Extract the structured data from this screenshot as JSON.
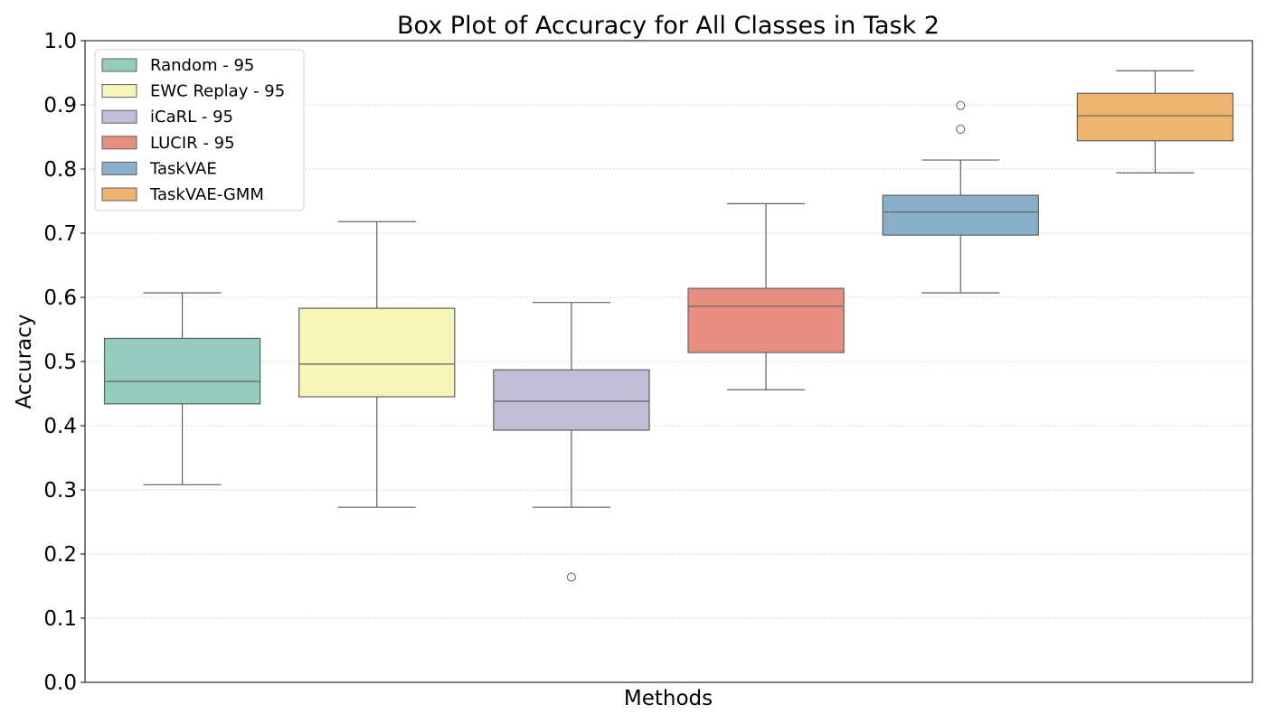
{
  "chart_data": {
    "type": "box",
    "title": "Box Plot of Accuracy for All Classes in Task 2",
    "xlabel": "Methods",
    "ylabel": "Accuracy",
    "ylim": [
      0.0,
      1.0
    ],
    "yticks": [
      "0.0",
      "0.1",
      "0.2",
      "0.3",
      "0.4",
      "0.5",
      "0.6",
      "0.7",
      "0.8",
      "0.9",
      "1.0"
    ],
    "grid": "horizontal dotted",
    "legend_position": "top-left",
    "series": [
      {
        "name": "Random - 95",
        "color": "#96cbc0",
        "whisker_low": 0.308,
        "q1": 0.434,
        "median": 0.469,
        "q3": 0.536,
        "whisker_high": 0.607,
        "outliers": []
      },
      {
        "name": "EWC Replay - 95",
        "color": "#f6f5b8",
        "whisker_low": 0.273,
        "q1": 0.445,
        "median": 0.496,
        "q3": 0.583,
        "whisker_high": 0.718,
        "outliers": []
      },
      {
        "name": "iCaRL - 95",
        "color": "#c1bdd6",
        "whisker_low": 0.273,
        "q1": 0.393,
        "median": 0.438,
        "q3": 0.487,
        "whisker_high": 0.592,
        "outliers": [
          0.164
        ]
      },
      {
        "name": "LUCIR - 95",
        "color": "#e98f82",
        "whisker_low": 0.456,
        "q1": 0.514,
        "median": 0.586,
        "q3": 0.614,
        "whisker_high": 0.746,
        "outliers": []
      },
      {
        "name": "TaskVAE",
        "color": "#8aafca",
        "whisker_low": 0.607,
        "q1": 0.697,
        "median": 0.733,
        "q3": 0.759,
        "whisker_high": 0.814,
        "outliers": [
          0.862,
          0.899
        ]
      },
      {
        "name": "TaskVAE-GMM",
        "color": "#ecb371",
        "whisker_low": 0.794,
        "q1": 0.844,
        "median": 0.883,
        "q3": 0.918,
        "whisker_high": 0.953,
        "outliers": []
      }
    ]
  }
}
